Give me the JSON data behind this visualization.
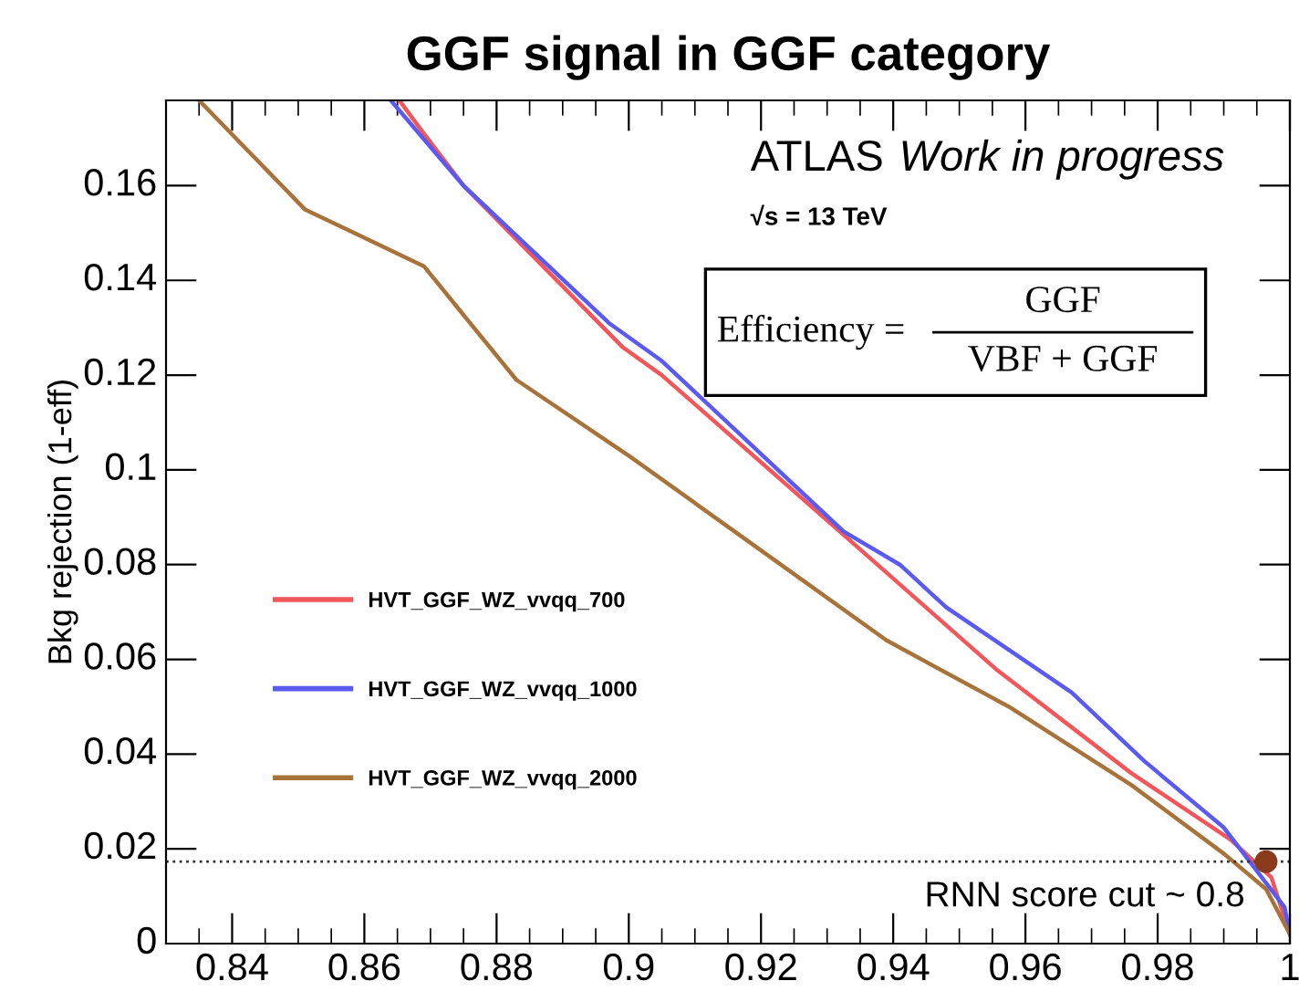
{
  "chart_data": {
    "type": "line",
    "title": "GGF signal in GGF category",
    "ylabel": "Bkg rejection (1-eff)",
    "xlim": [
      0.83,
      1.0
    ],
    "ylim": [
      0,
      0.178
    ],
    "xticks": [
      0.84,
      0.86,
      0.88,
      0.9,
      0.92,
      0.94,
      0.96,
      0.98,
      1
    ],
    "yticks": [
      0,
      0.02,
      0.04,
      0.06,
      0.08,
      0.1,
      0.12,
      0.14,
      0.16
    ],
    "grid": false,
    "legend": "left",
    "line_style": "solid",
    "marker": "none",
    "series": [
      {
        "name": "HVT_GGF_WZ_vvqq_700",
        "color": "#f0565a",
        "x": [
          0.8653,
          0.869,
          0.875,
          0.899,
          0.905,
          0.936,
          0.9555,
          0.976,
          0.991,
          0.9972,
          1.0
        ],
        "values": [
          0.178,
          0.171,
          0.16,
          0.126,
          0.12,
          0.082,
          0.058,
          0.036,
          0.022,
          0.014,
          0.002
        ]
      },
      {
        "name": "HVT_GGF_WZ_vvqq_1000",
        "color": "#5a5af0",
        "x": [
          0.864,
          0.875,
          0.897,
          0.905,
          0.9325,
          0.941,
          0.948,
          0.967,
          0.978,
          0.99,
          0.9992,
          1.0
        ],
        "values": [
          0.178,
          0.16,
          0.131,
          0.123,
          0.087,
          0.08,
          0.071,
          0.053,
          0.0385,
          0.0245,
          0.0077,
          0.002
        ]
      },
      {
        "name": "HVT_GGF_WZ_vvqq_2000",
        "color": "#a8733a",
        "x": [
          0.835,
          0.851,
          0.869,
          0.883,
          0.9,
          0.916,
          0.939,
          0.9575,
          0.976,
          0.99,
          0.9964,
          1.0
        ],
        "values": [
          0.178,
          0.155,
          0.143,
          0.119,
          0.103,
          0.087,
          0.064,
          0.05,
          0.0335,
          0.019,
          0.0115,
          0.002
        ]
      },
      {
        "type": "scatter",
        "color": "#8b3a1a",
        "x": [
          0.9964
        ],
        "values": [
          0.0173
        ],
        "marker": "circle"
      }
    ],
    "ref_lines": [
      {
        "axis": "y",
        "value": 0.0173,
        "label": "RNN score cut ~ 0.8",
        "color": "#333333",
        "line_style": "dotted"
      }
    ],
    "annotations": [
      "ATLAS",
      "Work in progress",
      "√s = 13 TeV",
      "Efficiency =",
      "GGF",
      "VBF + GGF"
    ]
  }
}
